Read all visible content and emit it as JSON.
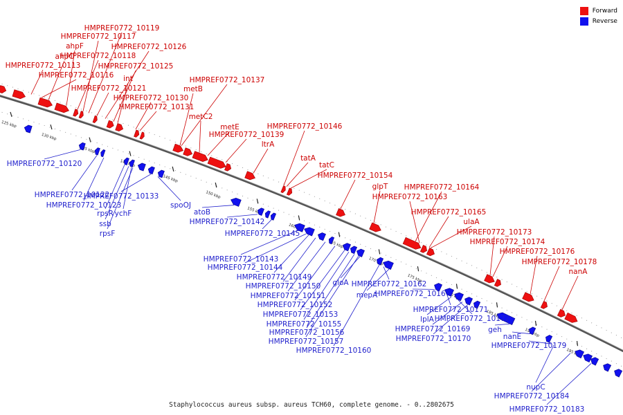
{
  "caption": "Staphylococcus aureus subsp. aureus TCH60, complete genome. - 0..2802675",
  "legend": [
    {
      "label": "Forward",
      "color": "#ee1111"
    },
    {
      "label": "Reverse",
      "color": "#1111ee"
    }
  ],
  "colors": {
    "forward": "#ee1111",
    "reverse": "#1111ee",
    "line_forward": "#cc0000",
    "line_reverse": "#1f1fcc",
    "backbone": "#555555"
  },
  "ticks": [
    "125 kbp",
    "130 kbp",
    "135 kbp",
    "140 kbp",
    "145 kbp",
    "150 kbp",
    "155 kbp",
    "160 kbp",
    "165 kbp",
    "170 kbp",
    "175 kbp",
    "180 kbp",
    "185 kbp",
    "190 kbp",
    "195 kbp"
  ],
  "forward_labels": [
    "HMPREF0772_10119",
    "HMPREF0772_10117",
    "ahpF",
    "ahpC",
    "HMPREF0772_10118",
    "HMPREF0772_10126",
    "HMPREF0772_10113",
    "HMPREF0772_10125",
    "HMPREF0772_10116",
    "int",
    "HMPREF0772_10121",
    "HMPREF0772_10137",
    "metB",
    "HMPREF0772_10130",
    "HMPREF0772_10131",
    "metC2",
    "metE",
    "HMPREF0772_10139",
    "HMPREF0772_10146",
    "ltrA",
    "tatA",
    "tatC",
    "HMPREF0772_10154",
    "glpT",
    "HMPREF0772_10164",
    "HMPREF0772_10163",
    "HMPREF0772_10165",
    "ulaA",
    "HMPREF0772_10173",
    "HMPREF0772_10174",
    "HMPREF0772_10176",
    "HMPREF0772_10178",
    "nanA"
  ],
  "reverse_labels": [
    "HMPREF0772_10120",
    "HMPREF0772_10122",
    "HMPREF0772_10123",
    "rpsR",
    "ychF",
    "ssb",
    "rpsF",
    "HMPREF0772_10133",
    "spoOJ",
    "atoB",
    "HMPREF0772_10142",
    "HMPREF0772_10145",
    "HMPREF0772_10143",
    "HMPREF0772_10144",
    "HMPREF0772_10149",
    "HMPREF0772_10150",
    "HMPREF0772_10151",
    "HMPREF0772_10152",
    "HMPREF0772_10153",
    "HMPREF0772_10155",
    "HMPREF0772_10156",
    "HMPREF0772_10157",
    "gloA",
    "HMPREF0772_10160",
    "HMPREF0772_10162",
    "mepA",
    "HMPREF0772_10167",
    "HMPREF0772_10171",
    "lplA",
    "HMPREF0772_10172",
    "HMPREF0772_10169",
    "HMPREF0772_10170",
    "geh",
    "nanE",
    "HMPREF0772_10179",
    "nupC",
    "HMPREF0772_10184",
    "HMPREF0772_10183"
  ]
}
